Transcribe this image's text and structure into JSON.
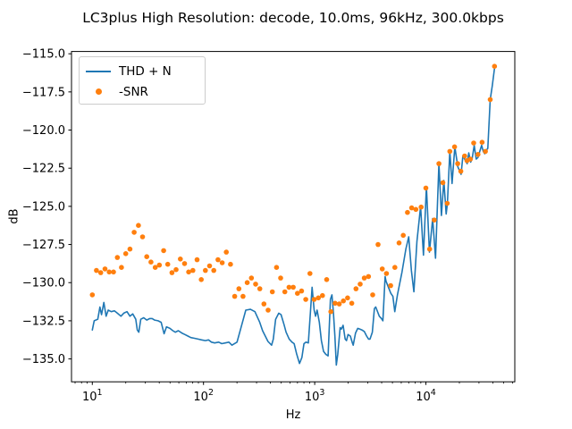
{
  "chart": {
    "title": "LC3plus High Resolution: decode, 10.0ms, 96kHz, 300.0kbps",
    "xlabel": "Hz",
    "ylabel": "dB"
  },
  "legend": {
    "position": "upper left",
    "items": [
      {
        "label": "THD + N",
        "type": "line",
        "color": "#1f77b4"
      },
      {
        "label": "-SNR",
        "type": "dot",
        "color": "#ff7f0e"
      }
    ]
  },
  "chart_data": {
    "type": "line",
    "title": "LC3plus High Resolution: decode, 10.0ms, 96kHz, 300.0kbps",
    "xlabel": "Hz",
    "ylabel": "dB",
    "xscale": "log",
    "grid": false,
    "xlim": [
      6.5,
      63000
    ],
    "ylim": [
      -136.5,
      -114.85
    ],
    "xticks": [
      10,
      100,
      1000,
      10000
    ],
    "yticks": [
      -115.0,
      -117.5,
      -120.0,
      -122.5,
      -125.0,
      -127.5,
      -130.0,
      -132.5,
      -135.0
    ],
    "series": [
      {
        "name": "THD + N",
        "type": "line",
        "color": "#1f77b4",
        "points": [
          [
            10,
            -133.1
          ],
          [
            10.4,
            -132.5
          ],
          [
            11.2,
            -132.4
          ],
          [
            11.7,
            -131.6
          ],
          [
            12.1,
            -132.1
          ],
          [
            12.7,
            -131.3
          ],
          [
            13.3,
            -132.2
          ],
          [
            13.9,
            -131.8
          ],
          [
            14.8,
            -131.9
          ],
          [
            15.8,
            -131.85
          ],
          [
            16.8,
            -132.0
          ],
          [
            18.1,
            -132.2
          ],
          [
            19.2,
            -132.0
          ],
          [
            20.5,
            -131.9
          ],
          [
            21.8,
            -132.2
          ],
          [
            23.1,
            -132.05
          ],
          [
            24.6,
            -132.4
          ],
          [
            25.4,
            -133.1
          ],
          [
            26.2,
            -133.25
          ],
          [
            27.3,
            -132.4
          ],
          [
            29,
            -132.3
          ],
          [
            30.9,
            -132.45
          ],
          [
            32.9,
            -132.35
          ],
          [
            34.5,
            -132.35
          ],
          [
            36.3,
            -132.45
          ],
          [
            39,
            -132.5
          ],
          [
            41.6,
            -132.6
          ],
          [
            44.2,
            -133.35
          ],
          [
            46.5,
            -132.9
          ],
          [
            49.9,
            -133.0
          ],
          [
            53,
            -133.15
          ],
          [
            55.8,
            -133.25
          ],
          [
            59.3,
            -133.15
          ],
          [
            63.8,
            -133.3
          ],
          [
            68,
            -133.4
          ],
          [
            72.3,
            -133.5
          ],
          [
            76.9,
            -133.6
          ],
          [
            82.9,
            -133.65
          ],
          [
            89.3,
            -133.7
          ],
          [
            96.2,
            -133.75
          ],
          [
            104,
            -133.8
          ],
          [
            111,
            -133.75
          ],
          [
            118,
            -133.9
          ],
          [
            126,
            -133.95
          ],
          [
            137,
            -133.9
          ],
          [
            146,
            -134.0
          ],
          [
            157,
            -133.95
          ],
          [
            169,
            -133.9
          ],
          [
            180,
            -134.1
          ],
          [
            200,
            -133.9
          ],
          [
            219,
            -132.85
          ],
          [
            240,
            -131.8
          ],
          [
            264,
            -131.75
          ],
          [
            290,
            -131.9
          ],
          [
            320,
            -132.6
          ],
          [
            340,
            -133.15
          ],
          [
            380,
            -133.85
          ],
          [
            410,
            -134.1
          ],
          [
            424,
            -133.7
          ],
          [
            445,
            -132.4
          ],
          [
            475,
            -132.0
          ],
          [
            498,
            -132.1
          ],
          [
            530,
            -132.75
          ],
          [
            553,
            -133.25
          ],
          [
            590,
            -133.7
          ],
          [
            625,
            -133.9
          ],
          [
            653,
            -134.0
          ],
          [
            686,
            -134.65
          ],
          [
            730,
            -135.3
          ],
          [
            767,
            -134.9
          ],
          [
            800,
            -134.0
          ],
          [
            835,
            -133.9
          ],
          [
            876,
            -133.95
          ],
          [
            920,
            -131.7
          ],
          [
            947,
            -130.3
          ],
          [
            988,
            -131.8
          ],
          [
            1018,
            -132.2
          ],
          [
            1050,
            -131.8
          ],
          [
            1100,
            -132.6
          ],
          [
            1148,
            -133.8
          ],
          [
            1200,
            -134.5
          ],
          [
            1260,
            -134.7
          ],
          [
            1320,
            -134.8
          ],
          [
            1385,
            -131.1
          ],
          [
            1430,
            -130.8
          ],
          [
            1475,
            -132.0
          ],
          [
            1520,
            -133.5
          ],
          [
            1565,
            -135.4
          ],
          [
            1612,
            -134.7
          ],
          [
            1695,
            -132.95
          ],
          [
            1735,
            -133.05
          ],
          [
            1800,
            -132.8
          ],
          [
            1880,
            -133.7
          ],
          [
            1930,
            -133.8
          ],
          [
            1995,
            -133.4
          ],
          [
            2090,
            -133.5
          ],
          [
            2170,
            -133.9
          ],
          [
            2220,
            -134.1
          ],
          [
            2330,
            -133.3
          ],
          [
            2440,
            -133.0
          ],
          [
            2550,
            -133.05
          ],
          [
            2660,
            -133.1
          ],
          [
            2790,
            -133.2
          ],
          [
            2930,
            -133.5
          ],
          [
            3050,
            -133.7
          ],
          [
            3140,
            -133.7
          ],
          [
            3300,
            -133.25
          ],
          [
            3440,
            -131.7
          ],
          [
            3540,
            -131.6
          ],
          [
            3810,
            -132.2
          ],
          [
            3980,
            -132.35
          ],
          [
            4100,
            -132.5
          ],
          [
            4300,
            -129.6
          ],
          [
            4380,
            -129.9
          ],
          [
            4600,
            -130.3
          ],
          [
            4840,
            -130.7
          ],
          [
            5050,
            -130.9
          ],
          [
            5250,
            -131.9
          ],
          [
            5550,
            -130.8
          ],
          [
            6100,
            -129.3
          ],
          [
            6600,
            -127.8
          ],
          [
            7000,
            -127.0
          ],
          [
            7400,
            -129.2
          ],
          [
            7800,
            -130.6
          ],
          [
            8300,
            -127.3
          ],
          [
            8950,
            -125.0
          ],
          [
            9500,
            -128.2
          ],
          [
            10100,
            -123.7
          ],
          [
            10750,
            -128.0
          ],
          [
            11500,
            -125.8
          ],
          [
            12200,
            -128.4
          ],
          [
            13100,
            -122.2
          ],
          [
            13800,
            -125.6
          ],
          [
            14500,
            -123.3
          ],
          [
            15200,
            -125.5
          ],
          [
            15600,
            -124.8
          ],
          [
            16400,
            -121.4
          ],
          [
            17200,
            -123.5
          ],
          [
            18200,
            -121.1
          ],
          [
            19350,
            -122.4
          ],
          [
            20700,
            -122.9
          ],
          [
            21500,
            -121.7
          ],
          [
            22300,
            -121.9
          ],
          [
            23500,
            -122.2
          ],
          [
            24300,
            -121.5
          ],
          [
            25250,
            -122.1
          ],
          [
            26000,
            -121.9
          ],
          [
            27200,
            -121.0
          ],
          [
            28300,
            -121.9
          ],
          [
            29400,
            -121.8
          ],
          [
            30500,
            -121.4
          ],
          [
            31700,
            -121.0
          ],
          [
            32800,
            -121.4
          ],
          [
            33800,
            -121.55
          ],
          [
            34300,
            -121.4
          ],
          [
            36000,
            -121.2
          ],
          [
            37900,
            -118.0
          ],
          [
            39500,
            -117.1
          ],
          [
            41300,
            -116.0
          ]
        ]
      },
      {
        "name": "-SNR",
        "type": "scatter",
        "color": "#ff7f0e",
        "points": [
          [
            10,
            -130.8
          ],
          [
            10.9,
            -129.2
          ],
          [
            11.9,
            -129.35
          ],
          [
            13,
            -129.1
          ],
          [
            14.2,
            -129.3
          ],
          [
            15.5,
            -129.3
          ],
          [
            16.8,
            -128.35
          ],
          [
            18.3,
            -129.0
          ],
          [
            20,
            -128.1
          ],
          [
            21.8,
            -127.8
          ],
          [
            23.8,
            -126.7
          ],
          [
            26,
            -126.25
          ],
          [
            28.3,
            -127.0
          ],
          [
            30.9,
            -128.3
          ],
          [
            33.7,
            -128.65
          ],
          [
            36.8,
            -129.0
          ],
          [
            40.1,
            -128.85
          ],
          [
            43.8,
            -127.9
          ],
          [
            47.7,
            -128.8
          ],
          [
            52,
            -129.35
          ],
          [
            56.7,
            -129.15
          ],
          [
            61.9,
            -128.45
          ],
          [
            67.5,
            -128.75
          ],
          [
            73.6,
            -129.3
          ],
          [
            80.2,
            -129.2
          ],
          [
            87.5,
            -128.5
          ],
          [
            95.4,
            -129.8
          ],
          [
            104,
            -129.2
          ],
          [
            113.5,
            -128.9
          ],
          [
            123.7,
            -129.2
          ],
          [
            134.9,
            -128.5
          ],
          [
            147.1,
            -128.7
          ],
          [
            160.4,
            -128.0
          ],
          [
            174.9,
            -128.8
          ],
          [
            190.7,
            -130.9
          ],
          [
            208,
            -130.4
          ],
          [
            226.8,
            -130.9
          ],
          [
            247.3,
            -130.0
          ],
          [
            269.6,
            -129.7
          ],
          [
            294,
            -130.1
          ],
          [
            320.6,
            -130.4
          ],
          [
            349.6,
            -131.4
          ],
          [
            381.2,
            -131.8
          ],
          [
            415.6,
            -130.6
          ],
          [
            453.2,
            -129.0
          ],
          [
            494.2,
            -129.7
          ],
          [
            538.9,
            -130.6
          ],
          [
            587.7,
            -130.3
          ],
          [
            640.8,
            -130.3
          ],
          [
            698.8,
            -130.7
          ],
          [
            762,
            -130.55
          ],
          [
            831,
            -131.1
          ],
          [
            906.1,
            -129.4
          ],
          [
            988.1,
            -131.1
          ],
          [
            1077.5,
            -131.0
          ],
          [
            1175,
            -130.85
          ],
          [
            1281.3,
            -129.8
          ],
          [
            1397.3,
            -131.9
          ],
          [
            1523.7,
            -131.35
          ],
          [
            1661.6,
            -131.4
          ],
          [
            1812,
            -131.2
          ],
          [
            1976,
            -131.0
          ],
          [
            2154.7,
            -131.35
          ],
          [
            2349.7,
            -130.4
          ],
          [
            2562.3,
            -130.1
          ],
          [
            2794.1,
            -129.7
          ],
          [
            3047,
            -129.6
          ],
          [
            3322.7,
            -130.8
          ],
          [
            3713,
            -127.5
          ],
          [
            4051,
            -129.1
          ],
          [
            4419,
            -129.4
          ],
          [
            4821,
            -130.2
          ],
          [
            5259,
            -129.0
          ],
          [
            5737,
            -127.4
          ],
          [
            6259,
            -126.9
          ],
          [
            6828,
            -125.4
          ],
          [
            7449,
            -125.1
          ],
          [
            8124,
            -125.2
          ],
          [
            9050,
            -125.05
          ],
          [
            10000,
            -123.8
          ],
          [
            10800,
            -127.8
          ],
          [
            11900,
            -125.9
          ],
          [
            13100,
            -122.2
          ],
          [
            14200,
            -123.45
          ],
          [
            15550,
            -124.8
          ],
          [
            16400,
            -121.4
          ],
          [
            18100,
            -121.1
          ],
          [
            19300,
            -122.2
          ],
          [
            20600,
            -122.7
          ],
          [
            22300,
            -121.7
          ],
          [
            23400,
            -122.0
          ],
          [
            25100,
            -121.9
          ],
          [
            26900,
            -120.85
          ],
          [
            29400,
            -121.6
          ],
          [
            32000,
            -120.8
          ],
          [
            34300,
            -121.4
          ],
          [
            37900,
            -118.0
          ],
          [
            41400,
            -115.82
          ]
        ]
      }
    ]
  }
}
